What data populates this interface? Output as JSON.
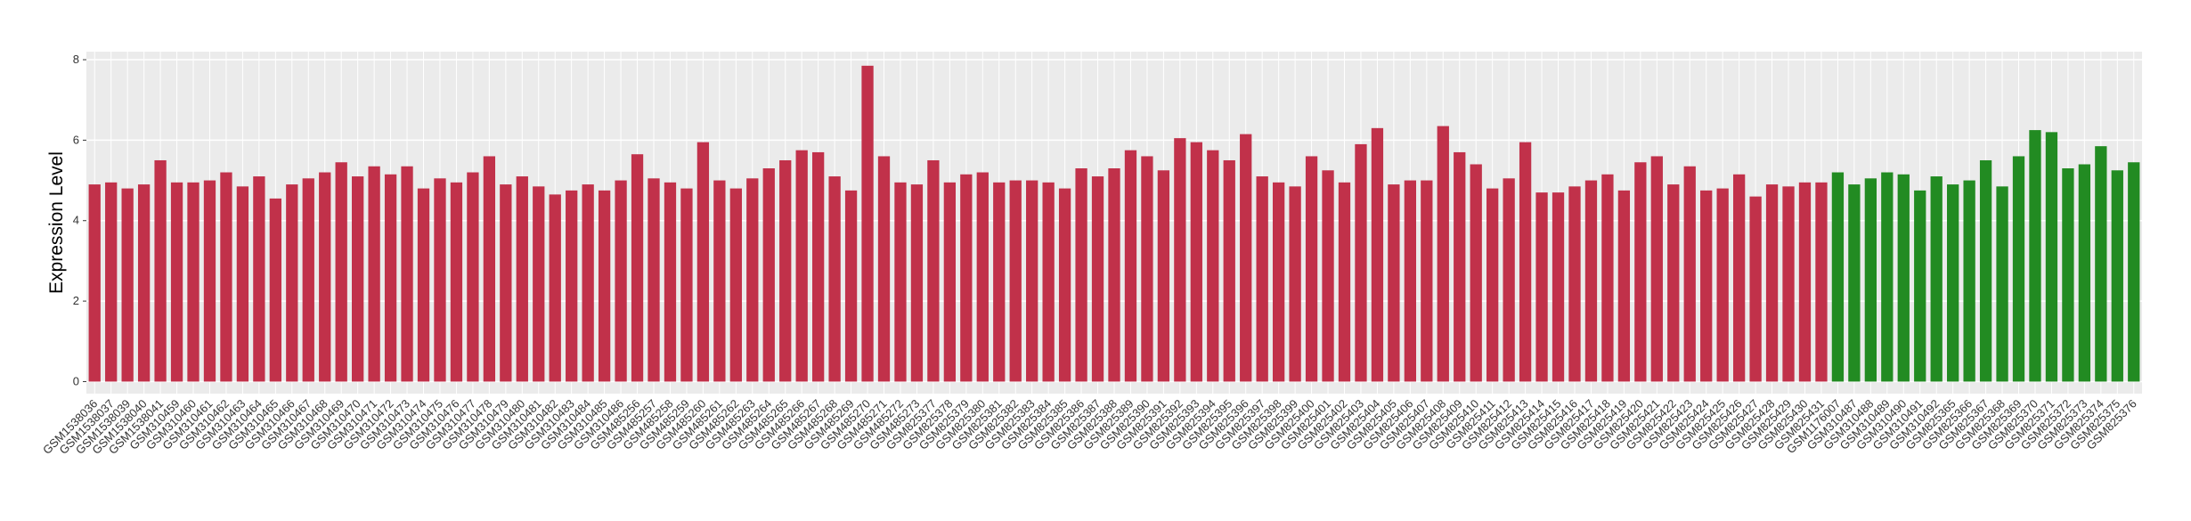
{
  "chart_data": {
    "type": "bar",
    "y_label": "Expression Level",
    "categories": [
      "GSM1538036",
      "GSM1538037",
      "GSM1538039",
      "GSM1538040",
      "GSM1538041",
      "GSM310459",
      "GSM310460",
      "GSM310461",
      "GSM310462",
      "GSM310463",
      "GSM310464",
      "GSM310465",
      "GSM310466",
      "GSM310467",
      "GSM310468",
      "GSM310469",
      "GSM310470",
      "GSM310471",
      "GSM310472",
      "GSM310473",
      "GSM310474",
      "GSM310475",
      "GSM310476",
      "GSM310477",
      "GSM310478",
      "GSM310479",
      "GSM310480",
      "GSM310481",
      "GSM310482",
      "GSM310483",
      "GSM310484",
      "GSM310485",
      "GSM310486",
      "GSM485256",
      "GSM485257",
      "GSM485258",
      "GSM485259",
      "GSM485260",
      "GSM485261",
      "GSM485262",
      "GSM485263",
      "GSM485264",
      "GSM485265",
      "GSM485266",
      "GSM485267",
      "GSM485268",
      "GSM485269",
      "GSM485270",
      "GSM485271",
      "GSM485272",
      "GSM485273",
      "GSM825377",
      "GSM825378",
      "GSM825379",
      "GSM825380",
      "GSM825381",
      "GSM825382",
      "GSM825383",
      "GSM825384",
      "GSM825385",
      "GSM825386",
      "GSM825387",
      "GSM825388",
      "GSM825389",
      "GSM825390",
      "GSM825391",
      "GSM825392",
      "GSM825393",
      "GSM825394",
      "GSM825395",
      "GSM825396",
      "GSM825397",
      "GSM825398",
      "GSM825399",
      "GSM825400",
      "GSM825401",
      "GSM825402",
      "GSM825403",
      "GSM825404",
      "GSM825405",
      "GSM825406",
      "GSM825407",
      "GSM825408",
      "GSM825409",
      "GSM825410",
      "GSM825411",
      "GSM825412",
      "GSM825413",
      "GSM825414",
      "GSM825415",
      "GSM825416",
      "GSM825417",
      "GSM825418",
      "GSM825419",
      "GSM825420",
      "GSM825421",
      "GSM825422",
      "GSM825423",
      "GSM825424",
      "GSM825425",
      "GSM825426",
      "GSM825427",
      "GSM825428",
      "GSM825429",
      "GSM825430",
      "GSM825431",
      "GSM1176007",
      "GSM310487",
      "GSM310488",
      "GSM310489",
      "GSM310490",
      "GSM310491",
      "GSM310492",
      "GSM825365",
      "GSM825366",
      "GSM825367",
      "GSM825368",
      "GSM825369",
      "GSM825370",
      "GSM825371",
      "GSM825372",
      "GSM825373",
      "GSM825374",
      "GSM825375",
      "GSM825376"
    ],
    "values": [
      4.9,
      4.95,
      4.8,
      4.9,
      5.5,
      4.95,
      4.95,
      5.0,
      5.2,
      4.85,
      5.1,
      4.55,
      4.9,
      5.05,
      5.2,
      5.45,
      5.1,
      5.35,
      5.15,
      5.35,
      4.8,
      5.05,
      4.95,
      5.2,
      5.6,
      4.9,
      5.1,
      4.85,
      4.65,
      4.75,
      4.9,
      4.75,
      5.0,
      5.65,
      5.05,
      4.95,
      4.8,
      5.95,
      5.0,
      4.8,
      5.05,
      5.3,
      5.5,
      5.75,
      5.7,
      5.1,
      4.75,
      7.85,
      5.6,
      4.95,
      4.9,
      5.5,
      4.95,
      5.15,
      5.2,
      4.95,
      5.0,
      5.0,
      4.95,
      4.8,
      5.3,
      5.1,
      5.3,
      5.75,
      5.6,
      5.25,
      6.05,
      5.95,
      5.75,
      5.5,
      6.15,
      5.1,
      4.95,
      4.85,
      5.6,
      5.25,
      4.95,
      5.9,
      6.3,
      4.9,
      5.0,
      5.0,
      6.35,
      5.7,
      5.4,
      4.8,
      5.05,
      5.95,
      4.7,
      4.7,
      4.85,
      5.0,
      5.15,
      4.75,
      5.45,
      5.6,
      4.9,
      5.35,
      4.75,
      4.8,
      5.15,
      4.6,
      4.9,
      4.85,
      4.95,
      4.95,
      5.2,
      4.9,
      5.05,
      5.2,
      5.15,
      4.75,
      5.1,
      4.9,
      5.0,
      5.5,
      4.85,
      5.6,
      6.25,
      6.2,
      5.3,
      5.4,
      5.85,
      5.25,
      5.45
    ],
    "group_colors": [
      "#c1314a",
      "#228b22"
    ],
    "green_from": "GSM1176007",
    "ylim": [
      -0.3,
      8.2
    ],
    "yticks": [
      0,
      2,
      4,
      6,
      8
    ],
    "grid": true
  }
}
